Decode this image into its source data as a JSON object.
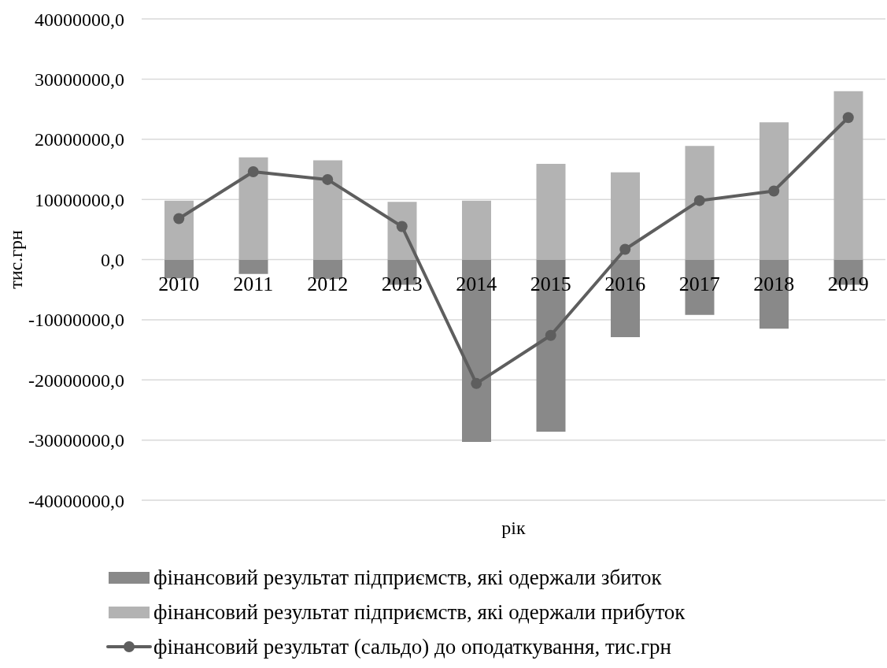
{
  "chart_data": {
    "type": "bar",
    "xlabel": "рік",
    "ylabel": "тис.грн",
    "stacked": true,
    "categories": [
      "2010",
      "2011",
      "2012",
      "2013",
      "2014",
      "2015",
      "2016",
      "2017",
      "2018",
      "2019"
    ],
    "series": [
      {
        "name": "фінансовий результат підприємств, які одержали збиток",
        "color": "#898989",
        "values": [
          -3100000,
          -2400000,
          -3200000,
          -4200000,
          -30300000,
          -28600000,
          -12900000,
          -9200000,
          -11500000,
          -4200000
        ]
      },
      {
        "name": "фінансовий результат підприємств, які одержали прибуток",
        "color": "#b3b3b3",
        "values": [
          9800000,
          17000000,
          16500000,
          9600000,
          9800000,
          15900000,
          14500000,
          18900000,
          22800000,
          28000000
        ]
      },
      {
        "name": "фінансовий результат (сальдо) до оподаткування, тис.грн",
        "type": "line",
        "color": "#5e5e5e",
        "marker": "circle",
        "values": [
          6800000,
          14600000,
          13300000,
          5500000,
          -20600000,
          -12600000,
          1700000,
          9800000,
          11400000,
          23600000
        ]
      }
    ],
    "ylim": [
      -40000000,
      40000000
    ],
    "yticks": [
      {
        "value": -40000000,
        "label": "-40000000,0"
      },
      {
        "value": -30000000,
        "label": "-30000000,0"
      },
      {
        "value": -20000000,
        "label": "-20000000,0"
      },
      {
        "value": -10000000,
        "label": "-10000000,0"
      },
      {
        "value": 0,
        "label": "0,0"
      },
      {
        "value": 10000000,
        "label": "10000000,0"
      },
      {
        "value": 20000000,
        "label": "20000000,0"
      },
      {
        "value": 30000000,
        "label": "30000000,0"
      },
      {
        "value": 40000000,
        "label": "40000000,0"
      }
    ],
    "grid": "y",
    "legend": "bottom"
  }
}
